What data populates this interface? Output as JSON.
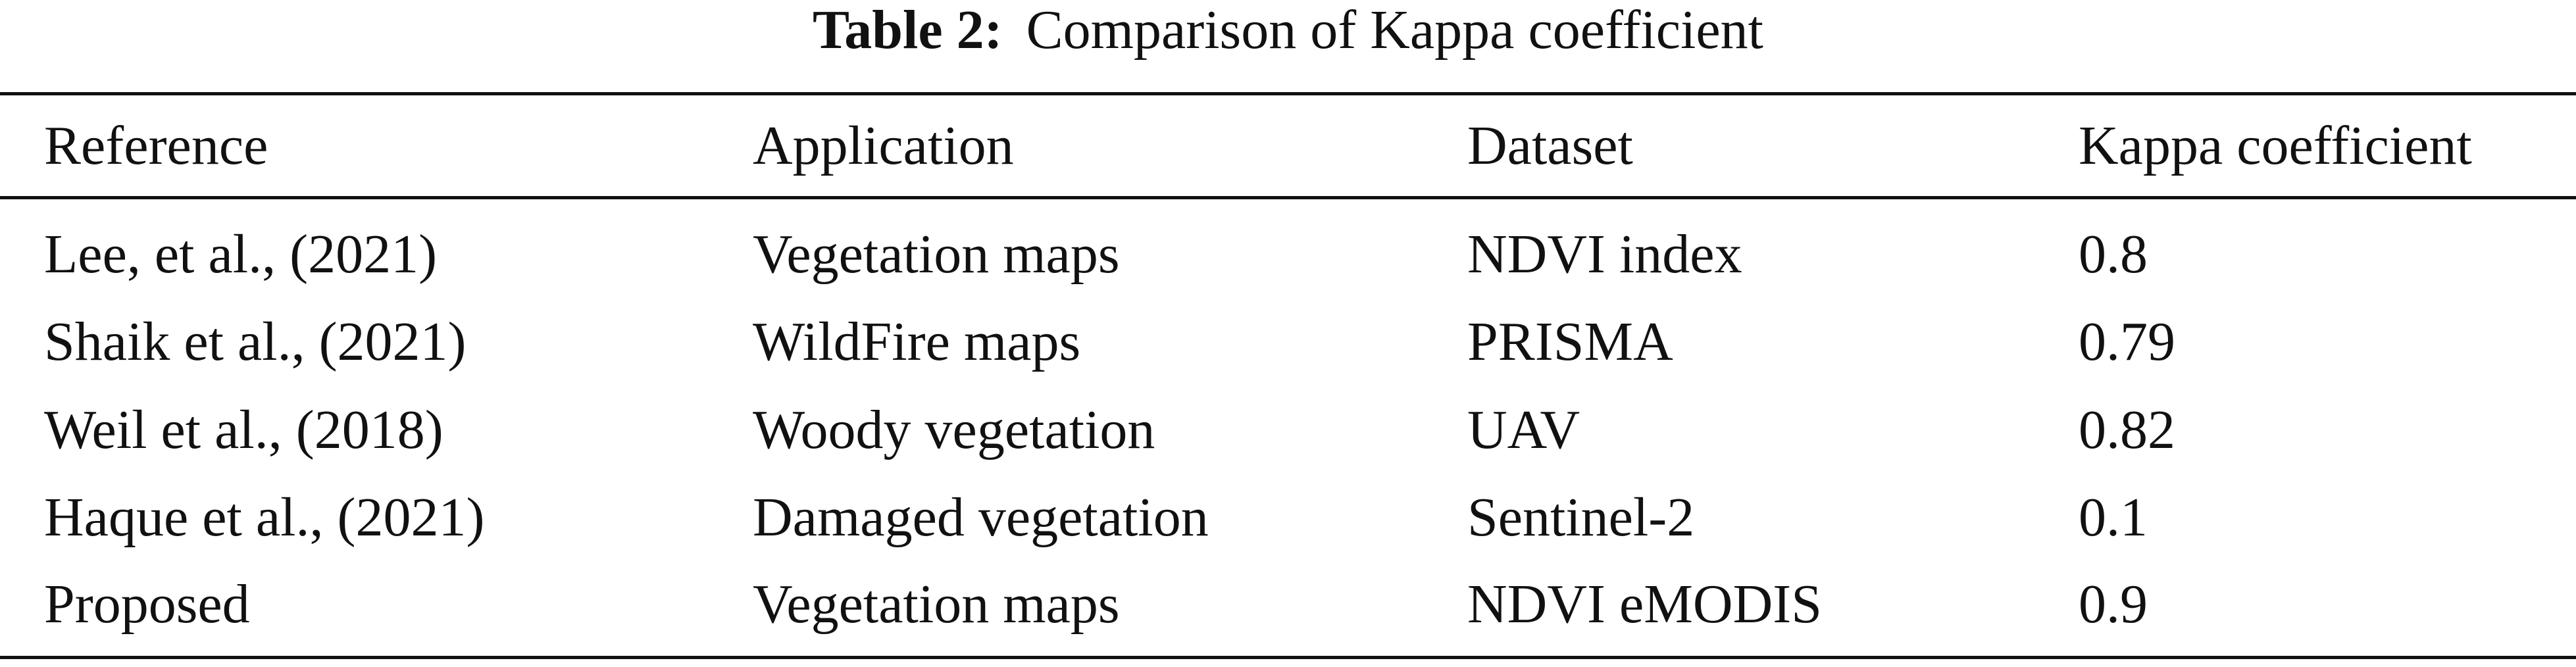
{
  "caption": {
    "label": "Table 2:",
    "text": "Comparison of Kappa coefficient"
  },
  "table": {
    "header": [
      "Reference",
      "Application",
      "Dataset",
      "Kappa coefficient"
    ],
    "rows": [
      [
        "Lee, et al., (2021)",
        "Vegetation maps",
        "NDVI index",
        0.8
      ],
      [
        "Shaik et al., (2021)",
        "WildFire maps",
        "PRISMA",
        0.79
      ],
      [
        "Weil et al., (2018)",
        "Woody vegetation",
        "UAV",
        0.82
      ],
      [
        "Haque et al., (2021)",
        "Damaged vegetation",
        "Sentinel-2",
        0.1
      ],
      [
        "Proposed",
        "Vegetation maps",
        "NDVI eMODIS",
        0.9
      ]
    ]
  }
}
